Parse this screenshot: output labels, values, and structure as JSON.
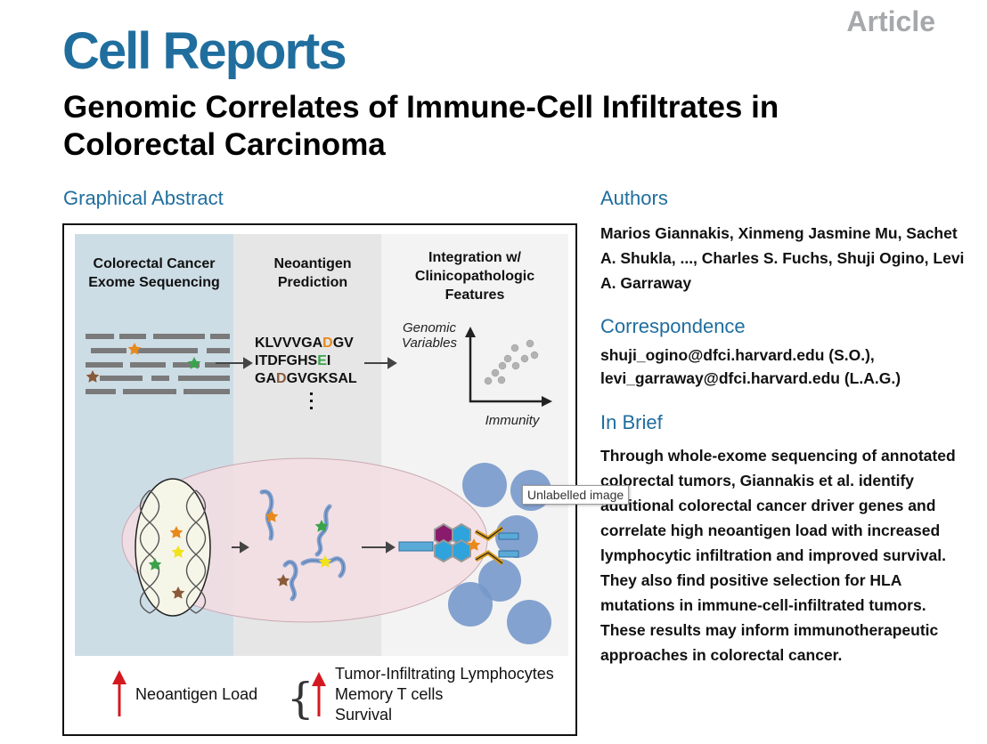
{
  "header": {
    "article_tag": "Article",
    "journal": "Cell Reports",
    "title": "Genomic Correlates of Immune-Cell Infiltrates in Colorectal Carcinoma"
  },
  "sections": {
    "graphical_abstract": "Graphical Abstract",
    "authors": "Authors",
    "correspondence": "Correspondence",
    "in_brief": "In Brief"
  },
  "authors_text": "Marios Giannakis, Xinmeng Jasmine Mu, Sachet A. Shukla, ..., Charles S. Fuchs, Shuji Ogino, Levi A. Garraway",
  "correspondence_lines": [
    "shuji_ogino@dfci.harvard.edu (S.O.),",
    "levi_garraway@dfci.harvard.edu (L.A.G.)"
  ],
  "in_brief_text": "Through whole-exome sequencing of annotated colorectal tumors, Giannakis et al. identify additional colorectal cancer driver genes and correlate high neoantigen load with increased lymphocytic infiltration and improved survival. They also find positive selection for HLA mutations in immune-cell-infiltrated tumors. These results may inform immunotherapeutic approaches in colorectal cancer.",
  "abstract": {
    "col1_line1": "Colorectal Cancer",
    "col1_line2": "Exome Sequencing",
    "col2_line1": "Neoantigen",
    "col2_line2": "Prediction",
    "col3_line1": "Integration w/",
    "col3_line2": "Clinicopathologic",
    "col3_line3": "Features",
    "peptides": [
      {
        "pre": "KLVVVGA",
        "mut": "D",
        "post": "GV",
        "color": "#e8891a"
      },
      {
        "pre": "ITDFGHS",
        "mut": "E",
        "post": "I",
        "color": "#3aa34a"
      },
      {
        "pre": "GA",
        "mut": "D",
        "post": "GVGKSAL",
        "color": "#8a5a3a"
      }
    ],
    "axis_y_line1": "Genomic",
    "axis_y_line2": "Variables",
    "axis_x": "Immunity",
    "legend_left": "Neoantigen Load",
    "legend_right": [
      "Tumor-Infiltrating Lymphocytes",
      "Memory T cells",
      "Survival"
    ]
  },
  "colors": {
    "brand": "#1f6e9e",
    "panel1": "#cddde6",
    "panel2": "#e6e6e6",
    "panel3": "#f3f3f3",
    "cell_ellipse": "#f3dde2",
    "lymphocyte": "#7496c9",
    "arrow_red": "#d4181f",
    "star_orange": "#e8891a",
    "star_green": "#3aa34a",
    "star_brown": "#8a5a3a",
    "star_yellow": "#f2e21a"
  },
  "tooltip": "Unlabelled image"
}
